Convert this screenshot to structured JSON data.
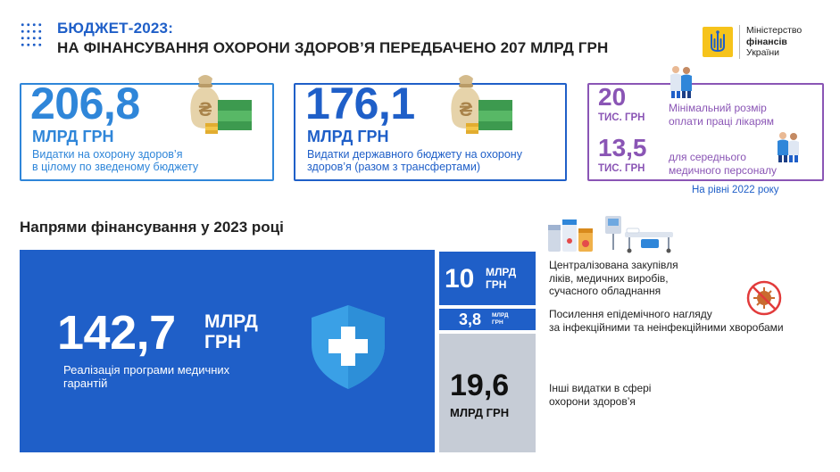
{
  "header": {
    "title_line1": "БЮДЖЕТ-2023:",
    "title_line2": "НА ФІНАНСУВАННЯ ОХОРОНИ ЗДОРОВ’Я ПЕРЕДБАЧЕНО 207 МЛРД ГРН"
  },
  "logo": {
    "line1": "Міністерство",
    "line2": "фінансів",
    "line3": "України",
    "accent_color": "#f6c31b"
  },
  "cards": {
    "total": {
      "value": "206,8",
      "unit": "МЛРД ГРН",
      "desc_line1": "Видатки на охорону здоров’я",
      "desc_line2": "в цілому по зведеному бюджету",
      "color": "#2f86d9"
    },
    "state": {
      "value": "176,1",
      "unit": "МЛРД ГРН",
      "desc_line1": "Видатки державного бюджету на охорону",
      "desc_line2": "здоров’я (разом з трансфертами)",
      "color": "#1f5fc8"
    },
    "salary": {
      "doctors_value": "20",
      "doctors_unit": "ТИС. ГРН",
      "doctors_desc_line1": "Мінімальний розмір",
      "doctors_desc_line2": "оплати праці лікарям",
      "nurses_value": "13,5",
      "nurses_unit": "ТИС. ГРН",
      "nurses_desc_line1": "для середнього",
      "nurses_desc_line2": "медичного персоналу",
      "note": "На рівні 2022 року",
      "color": "#8a55b5"
    }
  },
  "section": {
    "title": "Напрями фінансування у 2023 році",
    "main": {
      "value": "142,7",
      "unit_line1": "МЛРД",
      "unit_line2": "ГРН",
      "desc_line1": "Реалізація програми медичних",
      "desc_line2": "гарантій"
    },
    "procurement": {
      "value": "10",
      "unit_line1": "МЛРД",
      "unit_line2": "ГРН",
      "desc_line1": "Централізована закупівля",
      "desc_line2": "ліків, медичних виробів,",
      "desc_line3": "сучасного обладнання"
    },
    "epidemic": {
      "value": "3,8",
      "unit_line1": "МЛРД",
      "unit_line2": "ГРН",
      "desc_line1": "Посилення епідемічного нагляду",
      "desc_line2": "за інфекційними та неінфекційними хворобами"
    },
    "other": {
      "value": "19,6",
      "unit": "МЛРД ГРН",
      "desc_line1": "Інші видатки в сфері",
      "desc_line2": "охорони здоров’я"
    }
  },
  "colors": {
    "blue": "#1f5fc8",
    "light_blue": "#2f86d9",
    "purple": "#8a55b5",
    "grey": "#c6ccd6"
  },
  "icons": [
    "money-bag-icon",
    "doctors-icon",
    "nurses-icon",
    "medicine-icon",
    "hospital-bed-icon",
    "virus-icon",
    "shield-cross-icon",
    "dot-grid-icon",
    "trident-icon"
  ]
}
